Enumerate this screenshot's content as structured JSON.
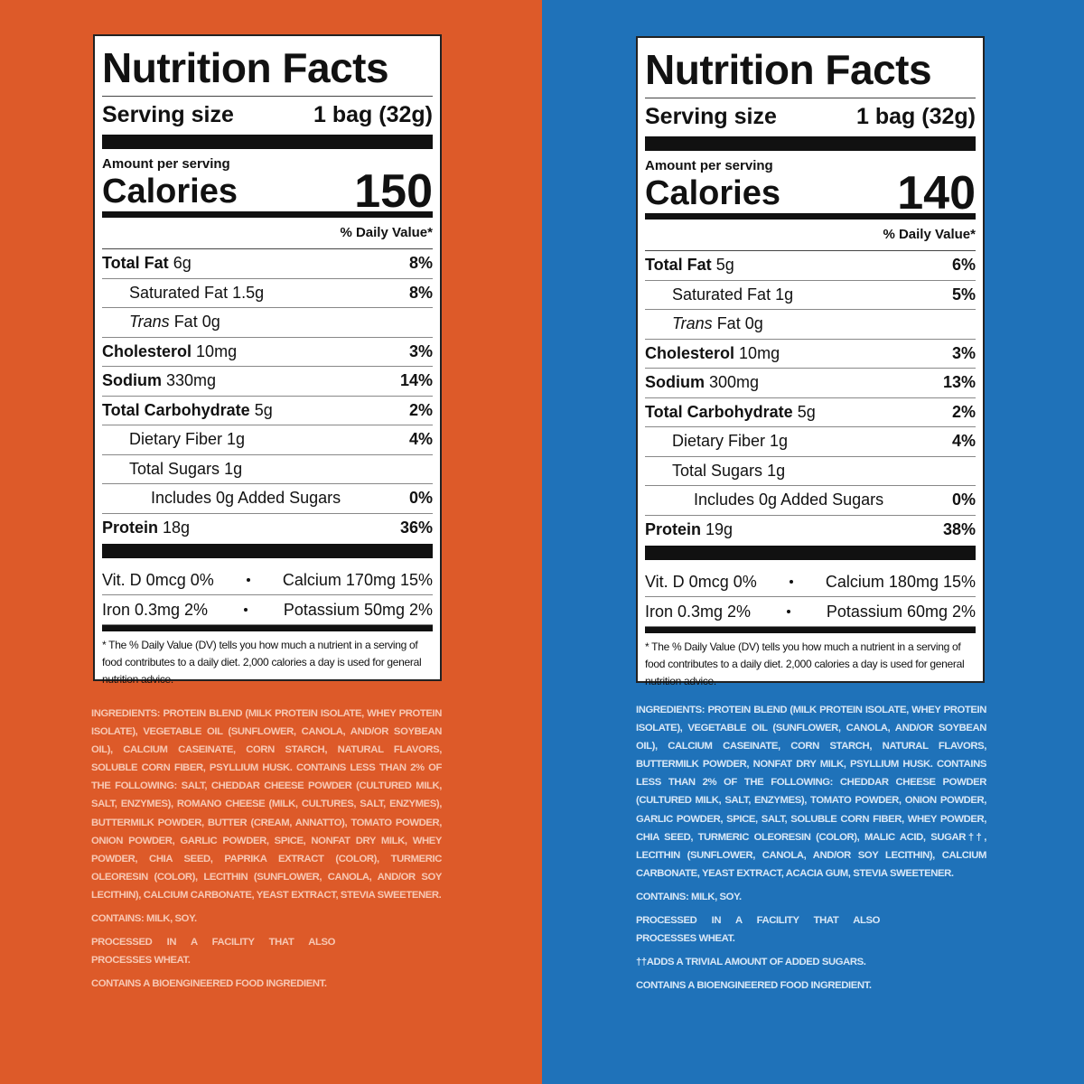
{
  "panels": [
    {
      "title": "Nutrition Facts",
      "serving_label": "Serving size",
      "serving_size": "1 bag (32g)",
      "amount_per_serving": "Amount per serving",
      "calories_label": "Calories",
      "calories": "150",
      "daily_value_header": "% Daily Value*",
      "rows": [
        {
          "name": "Total Fat",
          "amount": "6g",
          "dv": "8%"
        },
        {
          "name": "Saturated Fat",
          "amount": "1.5g",
          "dv": "8%"
        },
        {
          "name": "Trans Fat",
          "amount": "0g"
        },
        {
          "name": "Cholesterol",
          "amount": "10mg",
          "dv": "3%"
        },
        {
          "name": "Sodium",
          "amount": "330mg",
          "dv": "14%"
        },
        {
          "name": "Total Carbohydrate",
          "amount": "5g",
          "dv": "2%"
        },
        {
          "name": "Dietary Fiber",
          "amount": "1g",
          "dv": "4%"
        },
        {
          "name": "Total Sugars",
          "amount": "1g"
        },
        {
          "name": "Includes 0g Added Sugars",
          "dv": "0%"
        },
        {
          "name": "Protein",
          "amount": "18g",
          "dv": "36%"
        }
      ],
      "vitamins": [
        [
          "Vit. D 0mcg 0%",
          "Calcium 170mg 15%"
        ],
        [
          "Iron 0.3mg 2%",
          "Potassium 50mg 2%"
        ]
      ],
      "footnote": "* The % Daily Value (DV) tells you how much a nutrient in a serving of food contributes to a daily diet. 2,000 calories a day is used for general nutrition advice.",
      "ingredients_label": "INGREDIENTS:",
      "ingredients": "PROTEIN BLEND (MILK PROTEIN ISOLATE, WHEY PROTEIN ISOLATE), VEGETABLE OIL (SUNFLOWER, CANOLA, AND/OR SOYBEAN OIL), CALCIUM CASEINATE, CORN STARCH, NATURAL FLAVORS, SOLUBLE CORN FIBER, PSYLLIUM HUSK. CONTAINS LESS THAN 2% OF THE FOLLOWING: SALT, CHEDDAR CHEESE POWDER (CULTURED MILK, SALT, ENZYMES), ROMANO CHEESE (MILK, CULTURES, SALT, ENZYMES), BUTTERMILK POWDER, BUTTER (CREAM, ANNATTO), TOMATO POWDER, ONION POWDER, GARLIC POWDER, SPICE, NONFAT DRY MILK, WHEY POWDER, CHIA SEED, PAPRIKA EXTRACT (COLOR), TURMERIC OLEORESIN (COLOR), LECITHIN (SUNFLOWER, CANOLA, AND/OR SOY LECITHIN), CALCIUM CARBONATE, YEAST EXTRACT, STEVIA SWEETENER.",
      "notes": [
        "CONTAINS: MILK, SOY.",
        "PROCESSED IN A FACILITY THAT ALSO PROCESSES WHEAT.",
        "CONTAINS A BIOENGINEERED FOOD INGREDIENT."
      ]
    },
    {
      "title": "Nutrition Facts",
      "serving_label": "Serving size",
      "serving_size": "1 bag (32g)",
      "amount_per_serving": "Amount per serving",
      "calories_label": "Calories",
      "calories": "140",
      "daily_value_header": "% Daily Value*",
      "rows": [
        {
          "name": "Total Fat",
          "amount": "5g",
          "dv": "6%"
        },
        {
          "name": "Saturated Fat",
          "amount": "1g",
          "dv": "5%"
        },
        {
          "name": "Trans Fat",
          "amount": "0g"
        },
        {
          "name": "Cholesterol",
          "amount": "10mg",
          "dv": "3%"
        },
        {
          "name": "Sodium",
          "amount": "300mg",
          "dv": "13%"
        },
        {
          "name": "Total Carbohydrate",
          "amount": "5g",
          "dv": "2%"
        },
        {
          "name": "Dietary Fiber",
          "amount": "1g",
          "dv": "4%"
        },
        {
          "name": "Total Sugars",
          "amount": "1g"
        },
        {
          "name": "Includes 0g Added Sugars",
          "dv": "0%"
        },
        {
          "name": "Protein",
          "amount": "19g",
          "dv": "38%"
        }
      ],
      "vitamins": [
        [
          "Vit. D 0mcg 0%",
          "Calcium 180mg 15%"
        ],
        [
          "Iron 0.3mg 2%",
          "Potassium 60mg 2%"
        ]
      ],
      "footnote": "* The % Daily Value (DV) tells you how much a nutrient in a serving of food contributes to a daily diet. 2,000 calories a day is used for general nutrition advice.",
      "ingredients_label": "INGREDIENTS:",
      "ingredients": "PROTEIN BLEND (MILK PROTEIN ISOLATE, WHEY PROTEIN ISOLATE), VEGETABLE OIL (SUNFLOWER, CANOLA, AND/OR SOYBEAN OIL), CALCIUM CASEINATE, CORN STARCH, NATURAL FLAVORS, BUTTERMILK POWDER, NONFAT DRY MILK, PSYLLIUM HUSK. CONTAINS LESS THAN 2% OF THE FOLLOWING: CHEDDAR CHEESE POWDER (CULTURED MILK, SALT, ENZYMES), TOMATO POWDER, ONION POWDER, GARLIC POWDER, SPICE, SALT, SOLUBLE CORN FIBER, WHEY POWDER, CHIA SEED, TURMERIC OLEORESIN (COLOR), MALIC ACID, SUGAR††, LECITHIN (SUNFLOWER, CANOLA, AND/OR SOY LECITHIN), CALCIUM CARBONATE, YEAST EXTRACT, ACACIA GUM, STEVIA SWEETENER.",
      "notes": [
        "CONTAINS: MILK, SOY.",
        "PROCESSED IN A FACILITY THAT ALSO PROCESSES WHEAT.",
        "††ADDS A TRIVIAL AMOUNT OF ADDED SUGARS.",
        "CONTAINS A BIOENGINEERED FOOD INGREDIENT."
      ]
    }
  ]
}
